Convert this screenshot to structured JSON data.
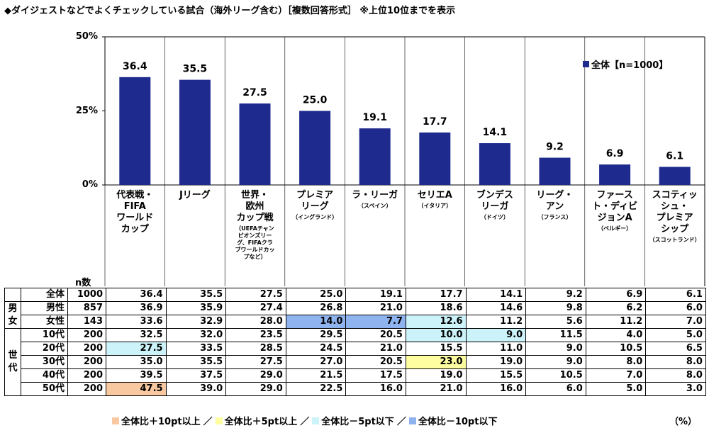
{
  "title": "◆ダイジェストなどでよくチェックしている試合（海外リーグ含む）［複数回答形式］ ※上位10位までを表示",
  "chart_data": {
    "type": "bar",
    "categories": [
      "代表戦・FIFAワールドカップ",
      "Jリーグ",
      "世界・欧州カップ戦",
      "プレミアリーグ",
      "ラ・リーガ",
      "セリエA",
      "ブンデスリーガ",
      "リーグ・アン",
      "ファースト・ディビジョンA",
      "スコティッシュ・プレミアシップ"
    ],
    "category_lines": [
      [
        "代表戦・",
        "FIFA",
        "ワールド",
        "カップ"
      ],
      [
        "Jリーグ"
      ],
      [
        "世界・",
        "欧州",
        "カップ戦"
      ],
      [
        "プレミア",
        "リーグ"
      ],
      [
        "ラ・リーガ"
      ],
      [
        "セリエA"
      ],
      [
        "ブンデス",
        "リーガ"
      ],
      [
        "リーグ・",
        "アン"
      ],
      [
        "ファース",
        "ト・ディビ",
        "ジョンA"
      ],
      [
        "スコティッ",
        "シュ・",
        "プレミア",
        "シップ"
      ]
    ],
    "category_notes": [
      "",
      "",
      "（UEFAチャンピオンズリーグ、FIFAクラブワールドカップなど）",
      "（イングランド）",
      "（スペイン）",
      "（イタリア）",
      "（ドイツ）",
      "（フランス）",
      "（ベルギー）",
      "（スコットランド）"
    ],
    "series": [
      {
        "name": "全体【n=1000】",
        "values": [
          36.4,
          35.5,
          27.5,
          25.0,
          19.1,
          17.7,
          14.1,
          9.2,
          6.9,
          6.1
        ],
        "color": "#1f2a8f"
      }
    ],
    "data_labels": [
      "36.4",
      "35.5",
      "27.5",
      "25.0",
      "19.1",
      "17.7",
      "14.1",
      "9.2",
      "6.9",
      "6.1"
    ],
    "yticks": [
      "50%",
      "25%",
      "0%"
    ],
    "ylim": [
      0,
      50
    ],
    "grid": false,
    "legend_position": "top-right"
  },
  "table": {
    "n_header": "n数",
    "group_labels": {
      "gender": "男女",
      "age": "世代"
    },
    "rows": [
      {
        "group": "",
        "label": "全体",
        "n": "1000",
        "values": [
          "36.4",
          "35.5",
          "27.5",
          "25.0",
          "19.1",
          "17.7",
          "14.1",
          "9.2",
          "6.9",
          "6.1"
        ],
        "highlights": [
          "",
          "",
          "",
          "",
          "",
          "",
          "",
          "",
          "",
          ""
        ]
      },
      {
        "group": "gender",
        "label": "男性",
        "n": "857",
        "values": [
          "36.9",
          "35.9",
          "27.4",
          "26.8",
          "21.0",
          "18.6",
          "14.6",
          "9.8",
          "6.2",
          "6.0"
        ],
        "highlights": [
          "",
          "",
          "",
          "",
          "",
          "",
          "",
          "",
          "",
          ""
        ]
      },
      {
        "group": "gender",
        "label": "女性",
        "n": "143",
        "values": [
          "33.6",
          "32.9",
          "28.0",
          "14.0",
          "7.7",
          "12.6",
          "11.2",
          "5.6",
          "11.2",
          "7.0"
        ],
        "highlights": [
          "",
          "",
          "",
          "blue",
          "blue",
          "cyan",
          "",
          "",
          "",
          ""
        ]
      },
      {
        "group": "age",
        "label": "10代",
        "n": "200",
        "values": [
          "32.5",
          "32.0",
          "23.5",
          "29.5",
          "20.5",
          "10.0",
          "9.0",
          "11.5",
          "4.0",
          "5.0"
        ],
        "highlights": [
          "",
          "",
          "",
          "",
          "",
          "cyan",
          "cyan",
          "",
          "",
          ""
        ]
      },
      {
        "group": "age",
        "label": "20代",
        "n": "200",
        "values": [
          "27.5",
          "33.5",
          "28.5",
          "24.5",
          "21.0",
          "15.5",
          "11.0",
          "9.0",
          "10.5",
          "6.5"
        ],
        "highlights": [
          "cyan",
          "",
          "",
          "",
          "",
          "",
          "",
          "",
          "",
          ""
        ]
      },
      {
        "group": "age",
        "label": "30代",
        "n": "200",
        "values": [
          "35.0",
          "35.5",
          "27.5",
          "27.0",
          "20.5",
          "23.0",
          "19.0",
          "9.0",
          "8.0",
          "8.0"
        ],
        "highlights": [
          "",
          "",
          "",
          "",
          "",
          "yellow",
          "",
          "",
          "",
          ""
        ]
      },
      {
        "group": "age",
        "label": "40代",
        "n": "200",
        "values": [
          "39.5",
          "37.5",
          "29.0",
          "21.5",
          "17.5",
          "19.0",
          "15.5",
          "10.5",
          "7.0",
          "8.0"
        ],
        "highlights": [
          "",
          "",
          "",
          "",
          "",
          "",
          "",
          "",
          "",
          ""
        ]
      },
      {
        "group": "age",
        "label": "50代",
        "n": "200",
        "values": [
          "47.5",
          "39.0",
          "29.0",
          "22.5",
          "16.0",
          "21.0",
          "16.0",
          "6.0",
          "5.0",
          "3.0"
        ],
        "highlights": [
          "orange",
          "",
          "",
          "",
          "",
          "",
          "",
          "",
          "",
          ""
        ]
      }
    ]
  },
  "footer": {
    "items": [
      {
        "label": "全体比＋10pt以上",
        "color": "#f8c9a0"
      },
      {
        "label": "全体比＋5pt以上",
        "color": "#fefea0"
      },
      {
        "label": "全体比－5pt以下",
        "color": "#ccf3fa"
      },
      {
        "label": "全体比－10pt以下",
        "color": "#8fb3ee"
      }
    ],
    "separator": "／",
    "unit": "（%）"
  }
}
